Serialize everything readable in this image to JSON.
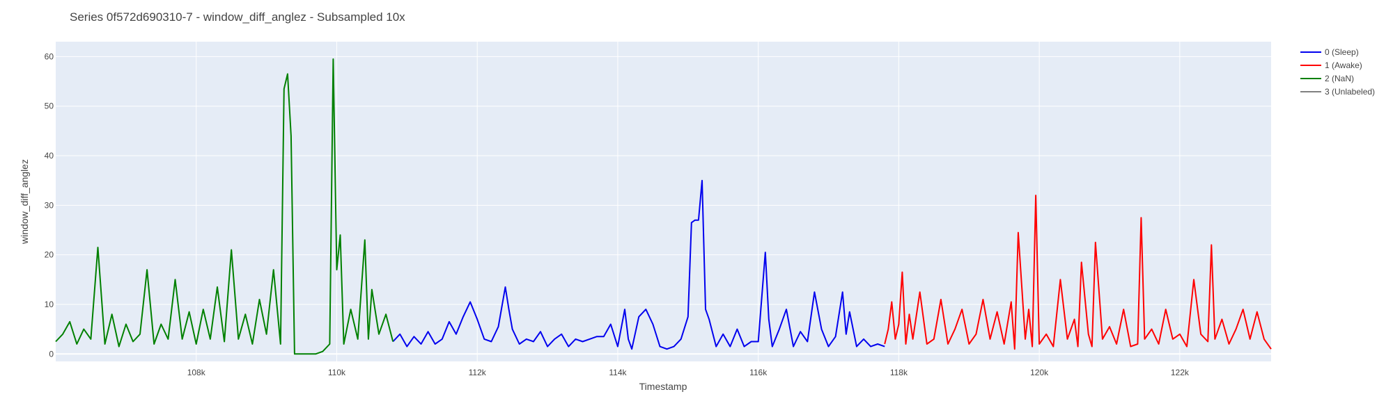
{
  "chart_data": {
    "type": "line",
    "title": "Series 0f572d690310-7 - window_diff_anglez - Subsampled 10x",
    "xlabel": "Timestamp",
    "ylabel": "window_diff_anglez",
    "xlim": [
      106000,
      123300
    ],
    "ylim": [
      -1.5,
      63
    ],
    "x_ticks": [
      108000,
      110000,
      112000,
      114000,
      116000,
      118000,
      120000,
      122000
    ],
    "x_tick_labels": [
      "108k",
      "110k",
      "112k",
      "114k",
      "116k",
      "118k",
      "120k",
      "122k"
    ],
    "y_ticks": [
      0,
      10,
      20,
      30,
      40,
      50,
      60
    ],
    "y_tick_labels": [
      "0",
      "10",
      "20",
      "30",
      "40",
      "50",
      "60"
    ],
    "grid": true,
    "background": "#e5ecf6",
    "legend_position": "right",
    "series": [
      {
        "name": "0 (Sleep)",
        "color": "#0000ee",
        "x": [
          110800,
          110900,
          111000,
          111100,
          111200,
          111300,
          111400,
          111500,
          111600,
          111700,
          111800,
          111900,
          112000,
          112100,
          112200,
          112300,
          112400,
          112450,
          112500,
          112600,
          112700,
          112800,
          112900,
          113000,
          113100,
          113200,
          113300,
          113400,
          113500,
          113600,
          113700,
          113800,
          113900,
          114000,
          114100,
          114150,
          114200,
          114300,
          114400,
          114500,
          114600,
          114700,
          114800,
          114900,
          115000,
          115050,
          115100,
          115150,
          115200,
          115250,
          115300,
          115400,
          115500,
          115600,
          115700,
          115800,
          115900,
          116000,
          116100,
          116150,
          116200,
          116300,
          116400,
          116500,
          116600,
          116700,
          116800,
          116900,
          117000,
          117100,
          117200,
          117250,
          117300,
          117400,
          117500,
          117600,
          117700,
          117800
        ],
        "y": [
          2.5,
          4,
          1.5,
          3.5,
          2,
          4.5,
          2,
          3,
          6.5,
          4,
          7.5,
          10.5,
          7,
          3,
          2.5,
          5.5,
          13.5,
          9,
          5,
          2,
          3,
          2.5,
          4.5,
          1.5,
          3,
          4,
          1.5,
          3,
          2.5,
          3,
          3.5,
          3.5,
          6,
          1.5,
          9,
          3,
          1,
          7.5,
          9,
          6,
          1.5,
          1,
          1.5,
          3,
          7.5,
          26.5,
          27,
          27,
          35,
          9,
          7,
          1.5,
          4,
          1.5,
          5,
          1.5,
          2.5,
          2.5,
          20.5,
          7,
          1.5,
          5,
          9,
          1.5,
          4.5,
          2.5,
          12.5,
          5,
          1.5,
          3.5,
          12.5,
          4,
          8.5,
          1.5,
          3,
          1.5,
          2,
          1.5
        ]
      },
      {
        "name": "1 (Awake)",
        "color": "#ff0000",
        "x": [
          117800,
          117850,
          117900,
          117950,
          118000,
          118050,
          118100,
          118150,
          118200,
          118300,
          118400,
          118500,
          118600,
          118700,
          118800,
          118900,
          119000,
          119100,
          119200,
          119300,
          119400,
          119500,
          119600,
          119650,
          119700,
          119800,
          119850,
          119900,
          119950,
          120000,
          120100,
          120200,
          120300,
          120400,
          120500,
          120550,
          120600,
          120700,
          120750,
          120800,
          120900,
          121000,
          121100,
          121200,
          121300,
          121400,
          121450,
          121500,
          121600,
          121700,
          121800,
          121900,
          122000,
          122100,
          122200,
          122300,
          122400,
          122450,
          122500,
          122600,
          122700,
          122800,
          122900,
          123000,
          123100,
          123200,
          123300
        ],
        "y": [
          2,
          5,
          10.5,
          3,
          6,
          16.5,
          2,
          8,
          3,
          12.5,
          2,
          3,
          11,
          2,
          5,
          9,
          2,
          4,
          11,
          3,
          8.5,
          2,
          10.5,
          1,
          24.5,
          3,
          9,
          1.5,
          32,
          2,
          4,
          1.5,
          15,
          3,
          7,
          1.5,
          18.5,
          4,
          1.5,
          22.5,
          3,
          5.5,
          2,
          9,
          1.5,
          2,
          27.5,
          3,
          5,
          2,
          9,
          3,
          4,
          1.5,
          15,
          4,
          2.5,
          22,
          3,
          7,
          2,
          5,
          9,
          3,
          8.5,
          3,
          1
        ]
      },
      {
        "name": "2 (NaN)",
        "color": "#008000",
        "x": [
          106000,
          106100,
          106200,
          106300,
          106400,
          106500,
          106600,
          106700,
          106800,
          106900,
          107000,
          107100,
          107200,
          107300,
          107400,
          107500,
          107600,
          107700,
          107800,
          107900,
          108000,
          108100,
          108200,
          108300,
          108400,
          108500,
          108600,
          108700,
          108800,
          108900,
          109000,
          109100,
          109200,
          109250,
          109300,
          109350,
          109400,
          109450,
          109500,
          109600,
          109700,
          109800,
          109900,
          109950,
          110000,
          110050,
          110100,
          110200,
          110300,
          110400,
          110450,
          110500,
          110600,
          110700,
          110800
        ],
        "y": [
          2.5,
          4,
          6.5,
          2,
          5,
          3,
          21.5,
          2,
          8,
          1.5,
          6,
          2.5,
          4,
          17,
          2,
          6,
          3,
          15,
          3,
          8.5,
          2,
          9,
          3,
          13.5,
          2.5,
          21,
          3,
          8,
          2,
          11,
          4,
          17,
          2,
          53.5,
          56.5,
          44,
          0,
          0,
          0,
          0,
          0,
          0.5,
          2,
          59.5,
          17,
          24,
          2,
          9,
          3,
          23,
          3,
          13,
          4,
          8,
          2.5
        ]
      },
      {
        "name": "3 (Unlabeled)",
        "color": "#808080",
        "x": [],
        "y": []
      }
    ]
  }
}
